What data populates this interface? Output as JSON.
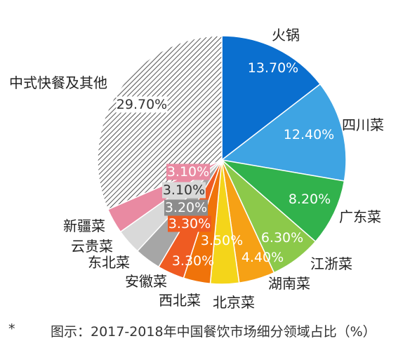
{
  "chart_data": {
    "type": "pie",
    "slices": [
      {
        "name": "火锅",
        "value": 13.7,
        "label": "13.70%",
        "color": "#0a6fcf"
      },
      {
        "name": "四川菜",
        "value": 12.4,
        "label": "12.40%",
        "color": "#3ea4e3"
      },
      {
        "name": "广东菜",
        "value": 8.2,
        "label": "8.20%",
        "color": "#31b24c"
      },
      {
        "name": "江浙菜",
        "value": 6.3,
        "label": "6.30%",
        "color": "#8cc94a"
      },
      {
        "name": "湖南菜",
        "value": 4.4,
        "label": "4.40%",
        "color": "#f6a115"
      },
      {
        "name": "北京菜",
        "value": 3.5,
        "label": "3.50%",
        "color": "#f4d51a"
      },
      {
        "name": "西北菜",
        "value": 3.3,
        "label": "3.30%",
        "color": "#f0730a"
      },
      {
        "name": "安徽菜",
        "value": 3.3,
        "label": "3.30%",
        "color": "#ef5b22"
      },
      {
        "name": "东北菜",
        "value": 3.2,
        "label": "3.20%",
        "color": "#a6a6a6"
      },
      {
        "name": "云贵菜",
        "value": 3.1,
        "label": "3.10%",
        "color": "#d9d9d9"
      },
      {
        "name": "新疆菜",
        "value": 3.1,
        "label": "3.10%",
        "color": "#e98aa2"
      },
      {
        "name": "中式快餐及其他",
        "value": 29.7,
        "label": "29.70%",
        "color": "#ffffff",
        "pattern": "hatched"
      }
    ]
  },
  "caption": {
    "marker": "*",
    "text": "图示：2017-2018年中国餐饮市场细分领域占比（%）"
  }
}
